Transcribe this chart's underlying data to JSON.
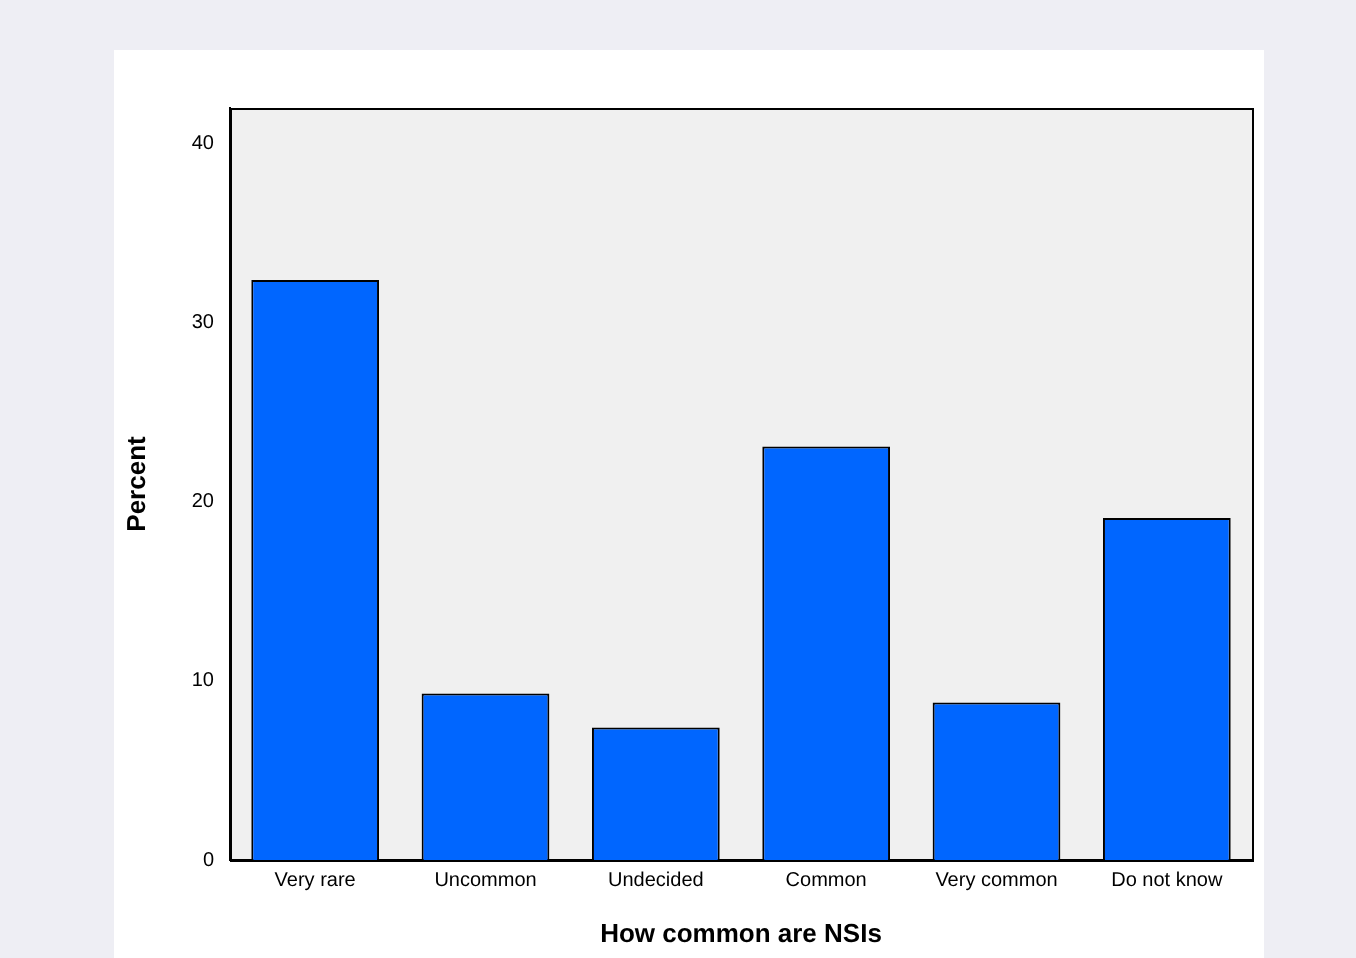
{
  "chart_data": {
    "type": "bar",
    "xlabel": "How common are NSIs",
    "ylabel": "Percent",
    "categories": [
      "Very rare",
      "Uncommon",
      "Undecided",
      "Common",
      "Very common",
      "Do not know"
    ],
    "values": [
      32.4,
      9.3,
      7.4,
      23.1,
      8.8,
      19.1
    ],
    "color": "#0066ff",
    "ylim": [
      0,
      42
    ],
    "yticks": [
      0,
      10,
      20,
      30,
      40
    ],
    "grid": false,
    "legend": false
  }
}
